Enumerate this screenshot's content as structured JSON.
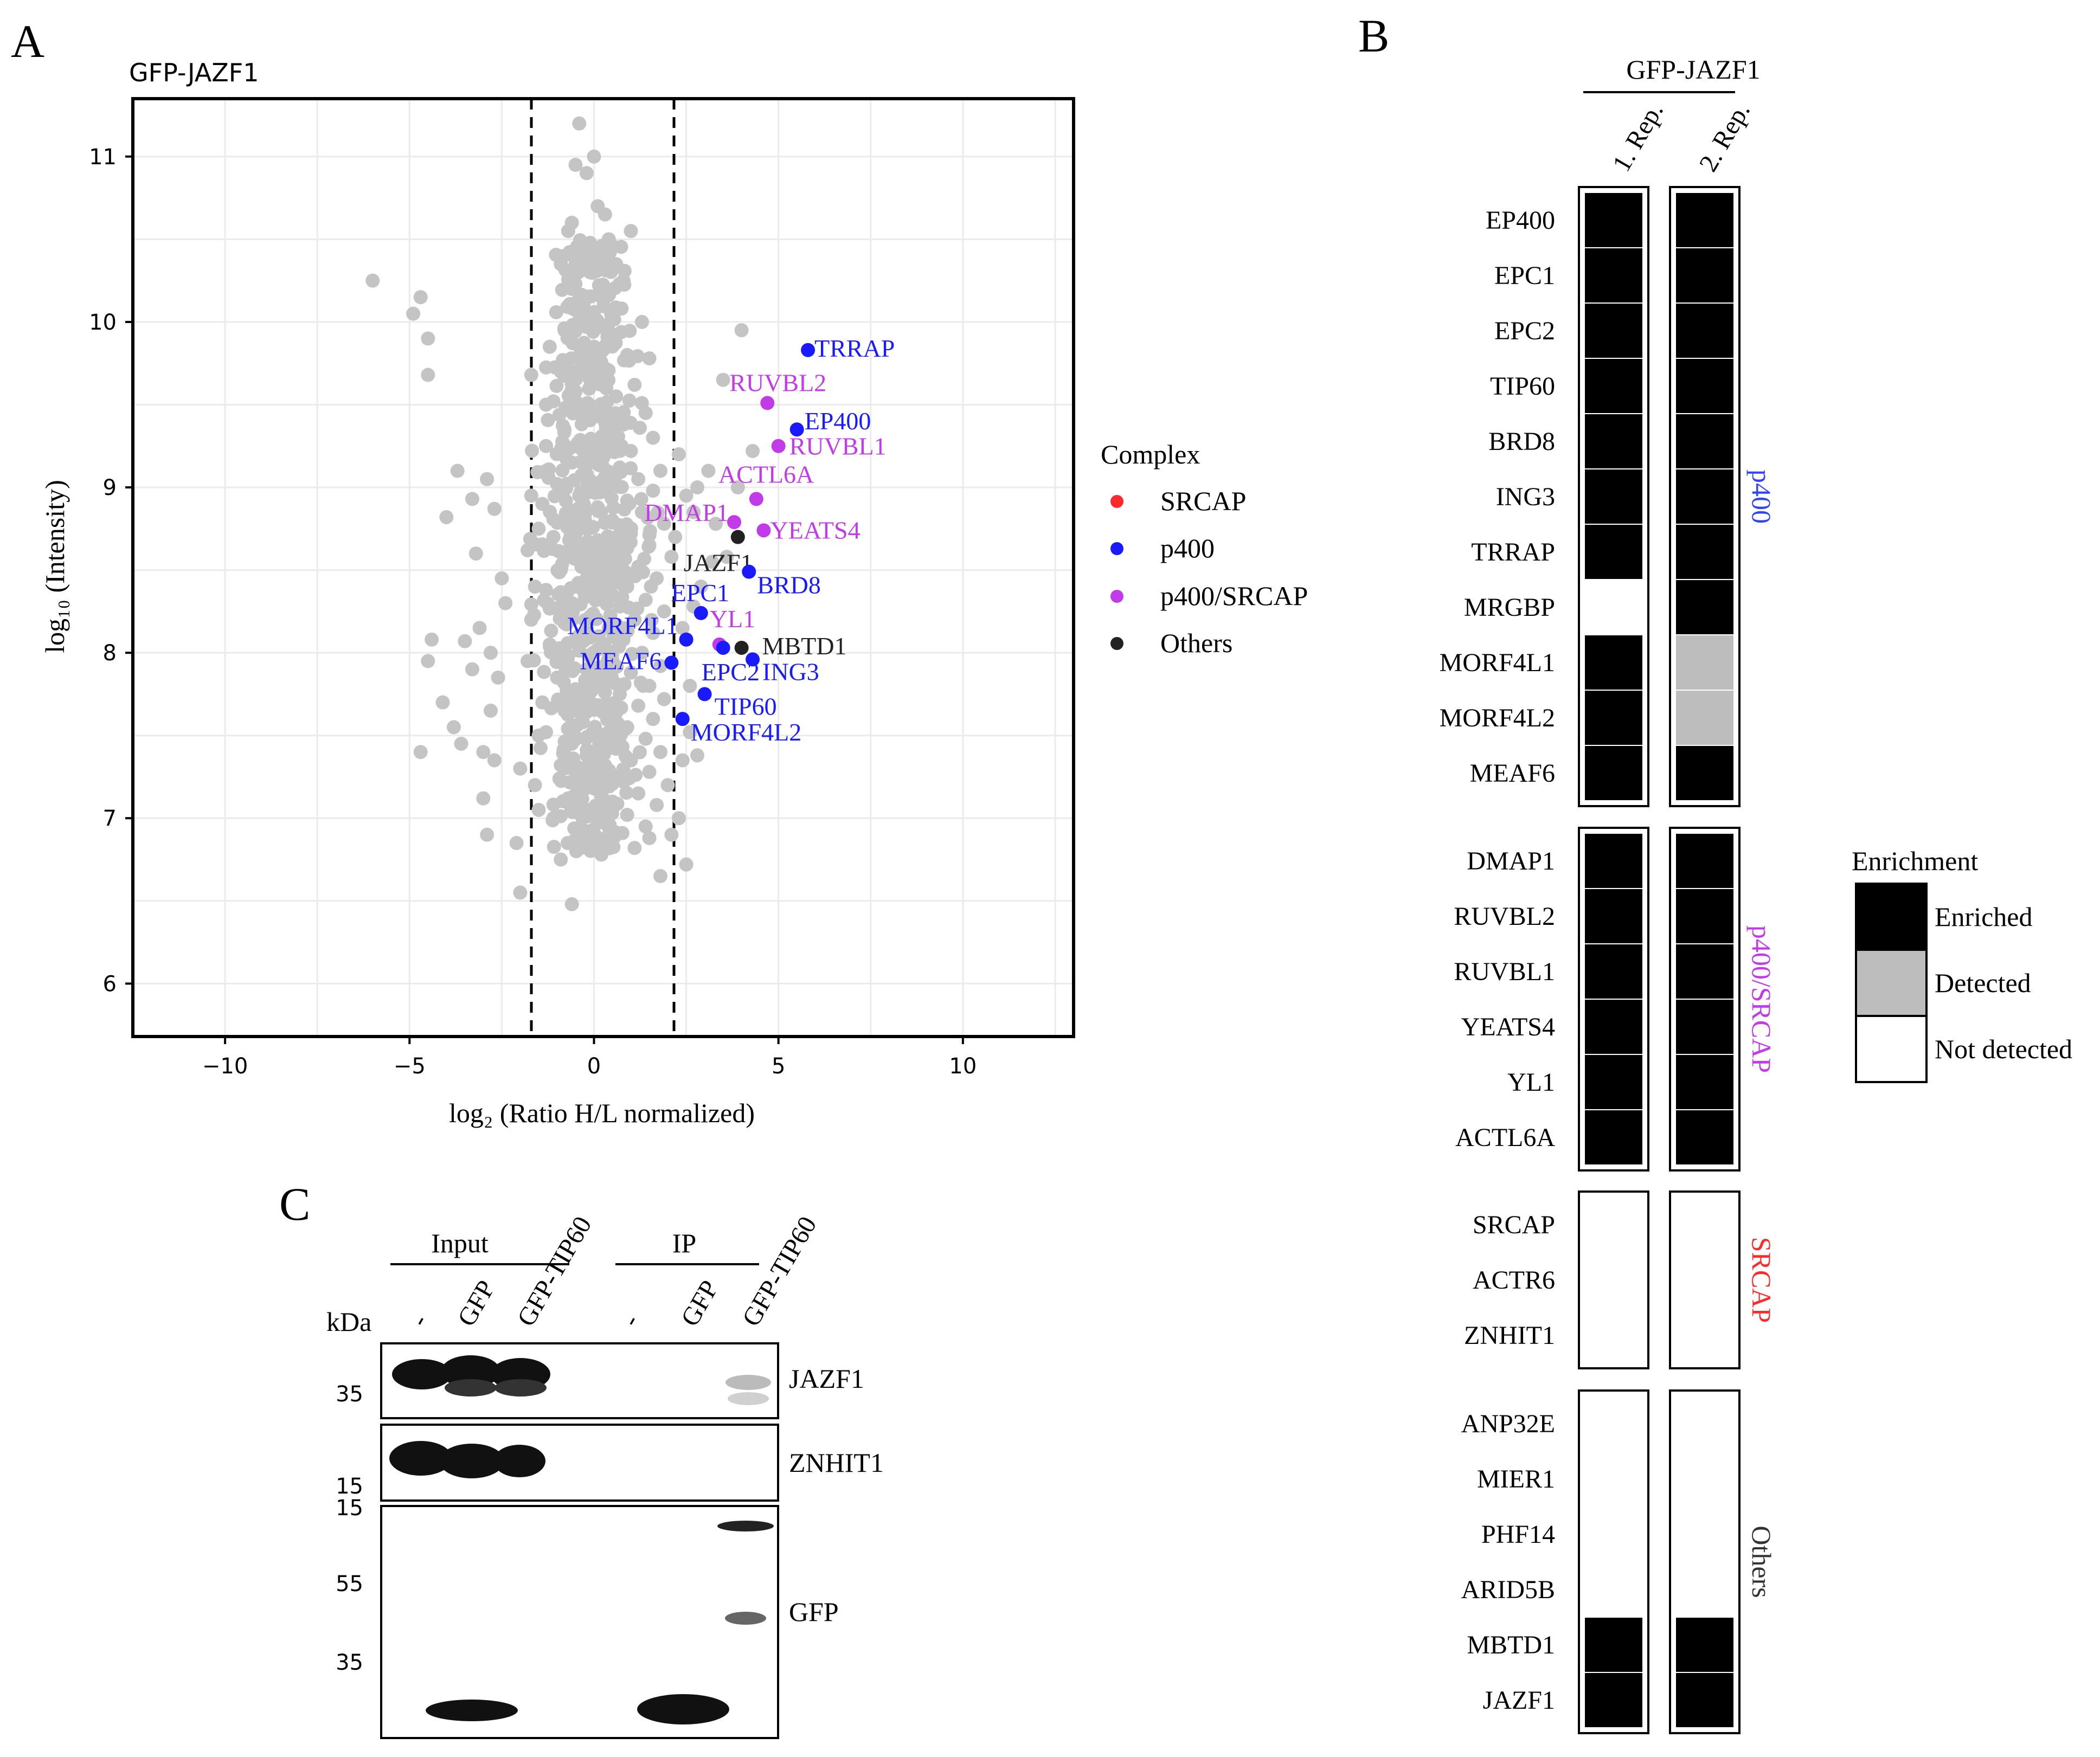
{
  "panel_letters": {
    "a": "A",
    "b": "B",
    "c": "C"
  },
  "panel_a": {
    "chart_data": {
      "type": "scatter",
      "title": "GFP-JAZF1",
      "xlabel": "log₂ (Ratio H/L normalized)",
      "ylabel": "log₁₀ (Intensity)",
      "xlim": [
        -12.5,
        13.0
      ],
      "ylim": [
        5.68,
        11.35
      ],
      "x_ticks": [
        -10,
        -5,
        0,
        5,
        10
      ],
      "x_tick_labels": [
        "−10",
        "−5",
        "0",
        "5",
        "10"
      ],
      "y_ticks": [
        6,
        7,
        8,
        9,
        10,
        11
      ],
      "y_tick_labels": [
        "6",
        "7",
        "8",
        "9",
        "10",
        "11"
      ],
      "grid": true,
      "threshold_lines_x": [
        -2,
        2
      ],
      "legend": {
        "title": "Complex",
        "position": "right",
        "entries": [
          {
            "label": "SRCAP",
            "color": "#ff2a2a"
          },
          {
            "label": "p400",
            "color": "#1a1aff"
          },
          {
            "label": "p400/SRCAP",
            "color": "#c23be8"
          },
          {
            "label": "Others",
            "color": "#222222"
          }
        ]
      },
      "colors": {
        "background_points": "#c4c4c4",
        "p400": "#1a1aff",
        "p400_srcap": "#c23be8",
        "others": "#222222"
      },
      "highlighted": [
        {
          "label": "TRRAP",
          "x": 5.8,
          "y": 9.83,
          "complex": "p400"
        },
        {
          "label": "EP400",
          "x": 5.5,
          "y": 9.35,
          "complex": "p400"
        },
        {
          "label": "RUVBL2",
          "x": 4.7,
          "y": 9.51,
          "complex": "p400/SRCAP"
        },
        {
          "label": "RUVBL1",
          "x": 5.0,
          "y": 9.25,
          "complex": "p400/SRCAP"
        },
        {
          "label": "ACTL6A",
          "x": 4.4,
          "y": 8.93,
          "complex": "p400/SRCAP"
        },
        {
          "label": "DMAP1",
          "x": 3.8,
          "y": 8.79,
          "complex": "p400/SRCAP"
        },
        {
          "label": "YEATS4",
          "x": 4.6,
          "y": 8.74,
          "complex": "p400/SRCAP"
        },
        {
          "label": "JAZF1",
          "x": 3.9,
          "y": 8.7,
          "complex": "Others"
        },
        {
          "label": "BRD8",
          "x": 4.2,
          "y": 8.49,
          "complex": "p400"
        },
        {
          "label": "EPC1",
          "x": 2.9,
          "y": 8.24,
          "complex": "p400"
        },
        {
          "label": "YL1",
          "x": 3.4,
          "y": 8.05,
          "complex": "p400/SRCAP"
        },
        {
          "label": "MORF4L1",
          "x": 2.5,
          "y": 8.08,
          "complex": "p400"
        },
        {
          "label": "MBTD1",
          "x": 4.0,
          "y": 8.03,
          "complex": "Others"
        },
        {
          "label": "MEAF6",
          "x": 2.1,
          "y": 7.94,
          "complex": "p400"
        },
        {
          "label": "ING3",
          "x": 4.3,
          "y": 7.96,
          "complex": "p400"
        },
        {
          "label": "EPC2",
          "x": 3.5,
          "y": 8.03,
          "complex": "p400"
        },
        {
          "label": "TIP60",
          "x": 3.0,
          "y": 7.75,
          "complex": "p400"
        },
        {
          "label": "MORF4L2",
          "x": 2.4,
          "y": 7.6,
          "complex": "p400"
        }
      ],
      "background_points": [
        [
          -6.0,
          10.25
        ],
        [
          -4.7,
          10.15
        ],
        [
          -4.9,
          10.05
        ],
        [
          -4.5,
          9.9
        ],
        [
          -4.5,
          9.68
        ],
        [
          -3.7,
          9.1
        ],
        [
          -3.3,
          8.93
        ],
        [
          -2.9,
          9.05
        ],
        [
          -2.7,
          8.87
        ],
        [
          -4.0,
          8.82
        ],
        [
          -3.2,
          8.6
        ],
        [
          -2.5,
          8.45
        ],
        [
          -2.4,
          8.3
        ],
        [
          -3.1,
          8.15
        ],
        [
          -2.8,
          8.0
        ],
        [
          -4.4,
          8.08
        ],
        [
          -4.5,
          7.95
        ],
        [
          -3.5,
          8.07
        ],
        [
          -3.3,
          7.9
        ],
        [
          -2.6,
          7.85
        ],
        [
          -4.1,
          7.7
        ],
        [
          -2.8,
          7.65
        ],
        [
          -3.8,
          7.55
        ],
        [
          -3.6,
          7.45
        ],
        [
          -3.0,
          7.4
        ],
        [
          -4.7,
          7.4
        ],
        [
          -2.7,
          7.35
        ],
        [
          -3.0,
          7.12
        ],
        [
          -2.9,
          6.9
        ],
        [
          -2.1,
          6.85
        ],
        [
          -2.0,
          6.55
        ],
        [
          -0.6,
          6.48
        ],
        [
          -1.5,
          7.05
        ],
        [
          -2.0,
          7.3
        ],
        [
          -1.5,
          7.5
        ],
        [
          -1.7,
          9.68
        ],
        [
          -1.3,
          9.5
        ],
        [
          -1.7,
          8.95
        ],
        [
          -1.8,
          8.62
        ],
        [
          -1.6,
          8.4
        ],
        [
          -0.4,
          11.2
        ],
        [
          -0.5,
          10.95
        ],
        [
          -0.2,
          10.9
        ],
        [
          0.0,
          11.0
        ],
        [
          0.1,
          10.7
        ],
        [
          0.3,
          10.65
        ],
        [
          1.0,
          10.55
        ],
        [
          -0.7,
          10.55
        ],
        [
          0.4,
          10.5
        ],
        [
          -0.4,
          10.35
        ],
        [
          0.8,
          10.25
        ],
        [
          -0.6,
          10.2
        ],
        [
          0.2,
          10.15
        ],
        [
          0.5,
          10.05
        ],
        [
          -0.2,
          10.0
        ],
        [
          1.3,
          10.0
        ],
        [
          -0.8,
          9.95
        ],
        [
          0.6,
          9.92
        ],
        [
          0.0,
          9.85
        ],
        [
          -1.2,
          9.85
        ],
        [
          0.9,
          9.8
        ],
        [
          -0.4,
          9.78
        ],
        [
          1.5,
          9.78
        ],
        [
          0.3,
          9.72
        ],
        [
          -0.9,
          9.7
        ],
        [
          0.0,
          9.65
        ],
        [
          1.1,
          9.62
        ],
        [
          -0.5,
          9.58
        ],
        [
          0.6,
          9.55
        ],
        [
          -1.1,
          9.52
        ],
        [
          0.2,
          9.48
        ],
        [
          1.4,
          9.45
        ],
        [
          -0.3,
          9.42
        ],
        [
          0.8,
          9.38
        ],
        [
          -0.8,
          9.35
        ],
        [
          0.4,
          9.32
        ],
        [
          1.6,
          9.3
        ],
        [
          -0.1,
          9.28
        ],
        [
          -1.3,
          9.25
        ],
        [
          1.0,
          9.22
        ],
        [
          0.2,
          9.18
        ],
        [
          -0.6,
          9.15
        ],
        [
          0.7,
          9.12
        ],
        [
          2.3,
          9.2
        ],
        [
          1.8,
          9.1
        ],
        [
          -0.2,
          9.08
        ],
        [
          1.2,
          9.05
        ],
        [
          -1.0,
          9.02
        ],
        [
          0.4,
          9.0
        ],
        [
          1.6,
          8.98
        ],
        [
          -0.4,
          8.95
        ],
        [
          0.9,
          8.92
        ],
        [
          -1.4,
          8.9
        ],
        [
          0.1,
          8.88
        ],
        [
          2.8,
          9.0
        ],
        [
          1.3,
          8.85
        ],
        [
          -0.7,
          8.82
        ],
        [
          0.5,
          8.8
        ],
        [
          1.9,
          8.78
        ],
        [
          -0.2,
          8.75
        ],
        [
          1.0,
          8.72
        ],
        [
          -1.1,
          8.7
        ],
        [
          0.3,
          8.68
        ],
        [
          1.5,
          8.65
        ],
        [
          -0.5,
          8.62
        ],
        [
          0.8,
          8.6
        ],
        [
          2.1,
          8.58
        ],
        [
          -0.1,
          8.55
        ],
        [
          1.2,
          8.52
        ],
        [
          -0.9,
          8.5
        ],
        [
          0.5,
          8.48
        ],
        [
          1.7,
          8.45
        ],
        [
          -0.3,
          8.42
        ],
        [
          0.9,
          8.4
        ],
        [
          -1.3,
          8.38
        ],
        [
          0.2,
          8.35
        ],
        [
          1.4,
          8.32
        ],
        [
          -0.6,
          8.3
        ],
        [
          0.7,
          8.28
        ],
        [
          1.9,
          8.25
        ],
        [
          -0.1,
          8.22
        ],
        [
          1.1,
          8.2
        ],
        [
          -0.8,
          8.18
        ],
        [
          0.4,
          8.15
        ],
        [
          1.6,
          8.12
        ],
        [
          -0.4,
          8.1
        ],
        [
          0.8,
          8.08
        ],
        [
          -1.2,
          8.05
        ],
        [
          0.1,
          8.02
        ],
        [
          1.3,
          8.0
        ],
        [
          -0.7,
          7.98
        ],
        [
          0.5,
          7.95
        ],
        [
          1.8,
          7.92
        ],
        [
          -0.2,
          7.9
        ],
        [
          1.0,
          7.88
        ],
        [
          -1.0,
          7.85
        ],
        [
          0.3,
          7.82
        ],
        [
          1.5,
          7.8
        ],
        [
          -0.5,
          7.78
        ],
        [
          0.7,
          7.75
        ],
        [
          1.9,
          7.72
        ],
        [
          -0.1,
          7.7
        ],
        [
          1.2,
          7.68
        ],
        [
          -0.8,
          7.65
        ],
        [
          0.4,
          7.62
        ],
        [
          1.6,
          7.6
        ],
        [
          -0.3,
          7.58
        ],
        [
          0.9,
          7.55
        ],
        [
          -1.3,
          7.52
        ],
        [
          0.2,
          7.5
        ],
        [
          1.4,
          7.48
        ],
        [
          -0.6,
          7.45
        ],
        [
          0.6,
          7.42
        ],
        [
          1.8,
          7.4
        ],
        [
          -0.2,
          7.38
        ],
        [
          1.0,
          7.35
        ],
        [
          -0.9,
          7.32
        ],
        [
          0.3,
          7.3
        ],
        [
          1.5,
          7.28
        ],
        [
          -0.4,
          7.25
        ],
        [
          0.8,
          7.22
        ],
        [
          2.0,
          7.2
        ],
        [
          0.0,
          7.18
        ],
        [
          1.2,
          7.15
        ],
        [
          -0.7,
          7.12
        ],
        [
          0.5,
          7.1
        ],
        [
          1.7,
          7.08
        ],
        [
          -0.2,
          7.05
        ],
        [
          0.9,
          7.02
        ],
        [
          -1.1,
          7.0
        ],
        [
          0.3,
          6.98
        ],
        [
          1.4,
          6.95
        ],
        [
          0.6,
          6.9
        ],
        [
          -0.3,
          6.85
        ],
        [
          1.1,
          6.82
        ],
        [
          2.5,
          6.72
        ],
        [
          1.5,
          6.88
        ],
        [
          0.2,
          6.78
        ],
        [
          -0.9,
          6.75
        ],
        [
          1.8,
          6.65
        ],
        [
          2.4,
          7.35
        ],
        [
          2.6,
          7.8
        ],
        [
          2.9,
          8.4
        ],
        [
          3.3,
          8.78
        ],
        [
          3.6,
          8.58
        ],
        [
          2.7,
          8.85
        ],
        [
          3.1,
          9.1
        ],
        [
          3.9,
          9.0
        ],
        [
          4.0,
          9.95
        ],
        [
          3.5,
          9.65
        ],
        [
          4.3,
          9.22
        ],
        [
          2.5,
          8.95
        ],
        [
          2.2,
          8.7
        ],
        [
          2.4,
          8.15
        ],
        [
          2.6,
          7.52
        ],
        [
          2.8,
          7.38
        ],
        [
          2.3,
          7.0
        ],
        [
          2.1,
          6.9
        ],
        [
          2.7,
          8.28
        ],
        [
          3.2,
          8.55
        ],
        [
          -0.9,
          10.35
        ],
        [
          -0.6,
          10.6
        ],
        [
          -0.1,
          10.3
        ],
        [
          0.6,
          10.35
        ],
        [
          -1.3,
          9.1
        ],
        [
          -1.5,
          8.75
        ],
        [
          -1.7,
          8.2
        ],
        [
          -1.8,
          7.95
        ],
        [
          -1.4,
          7.7
        ],
        [
          -1.6,
          7.2
        ]
      ]
    }
  },
  "panel_b": {
    "title": "GFP-JAZF1",
    "columns": [
      "1. Rep.",
      "2. Rep."
    ],
    "groups": [
      {
        "name": "p400",
        "color": "#3344ff",
        "rows": [
          {
            "label": "EP400",
            "values": [
              "Enriched",
              "Enriched"
            ]
          },
          {
            "label": "EPC1",
            "values": [
              "Enriched",
              "Enriched"
            ]
          },
          {
            "label": "EPC2",
            "values": [
              "Enriched",
              "Enriched"
            ]
          },
          {
            "label": "TIP60",
            "values": [
              "Enriched",
              "Enriched"
            ]
          },
          {
            "label": "BRD8",
            "values": [
              "Enriched",
              "Enriched"
            ]
          },
          {
            "label": "ING3",
            "values": [
              "Enriched",
              "Enriched"
            ]
          },
          {
            "label": "TRRAP",
            "values": [
              "Enriched",
              "Enriched"
            ]
          },
          {
            "label": "MRGBP",
            "values": [
              "Not detected",
              "Enriched"
            ]
          },
          {
            "label": "MORF4L1",
            "values": [
              "Enriched",
              "Detected"
            ]
          },
          {
            "label": "MORF4L2",
            "values": [
              "Enriched",
              "Detected"
            ]
          },
          {
            "label": "MEAF6",
            "values": [
              "Enriched",
              "Enriched"
            ]
          }
        ]
      },
      {
        "name": "p400/SRCAP",
        "color": "#c23be8",
        "rows": [
          {
            "label": "DMAP1",
            "values": [
              "Enriched",
              "Enriched"
            ]
          },
          {
            "label": "RUVBL2",
            "values": [
              "Enriched",
              "Enriched"
            ]
          },
          {
            "label": "RUVBL1",
            "values": [
              "Enriched",
              "Enriched"
            ]
          },
          {
            "label": "YEATS4",
            "values": [
              "Enriched",
              "Enriched"
            ]
          },
          {
            "label": "YL1",
            "values": [
              "Enriched",
              "Enriched"
            ]
          },
          {
            "label": "ACTL6A",
            "values": [
              "Enriched",
              "Enriched"
            ]
          }
        ]
      },
      {
        "name": "SRCAP",
        "color": "#ff2a2a",
        "rows": [
          {
            "label": "SRCAP",
            "values": [
              "Not detected",
              "Not detected"
            ]
          },
          {
            "label": "ACTR6",
            "values": [
              "Not detected",
              "Not detected"
            ]
          },
          {
            "label": "ZNHIT1",
            "values": [
              "Not detected",
              "Not detected"
            ]
          }
        ]
      },
      {
        "name": "Others",
        "color": "#333333",
        "rows": [
          {
            "label": "ANP32E",
            "values": [
              "Not detected",
              "Not detected"
            ]
          },
          {
            "label": "MIER1",
            "values": [
              "Not detected",
              "Not detected"
            ]
          },
          {
            "label": "PHF14",
            "values": [
              "Not detected",
              "Not detected"
            ]
          },
          {
            "label": "ARID5B",
            "values": [
              "Not detected",
              "Not detected"
            ]
          },
          {
            "label": "MBTD1",
            "values": [
              "Enriched",
              "Enriched"
            ]
          },
          {
            "label": "JAZF1",
            "values": [
              "Enriched",
              "Enriched"
            ]
          }
        ]
      }
    ],
    "legend": {
      "title": "Enrichment",
      "entries": [
        {
          "label": "Enriched",
          "color": "#000000"
        },
        {
          "label": "Detected",
          "color": "#bdbdbd"
        },
        {
          "label": "Not detected",
          "color": "#ffffff"
        }
      ]
    }
  },
  "panel_c": {
    "kda_label": "kDa",
    "groups": [
      {
        "label": "Input"
      },
      {
        "label": "IP"
      }
    ],
    "lanes": [
      "-",
      "GFP",
      "GFP-TIP60",
      "-",
      "GFP",
      "GFP-TIP60"
    ],
    "blots": [
      {
        "label": "JAZF1",
        "markers": [
          "35"
        ]
      },
      {
        "label": "ZNHIT1",
        "markers": [
          "15"
        ]
      },
      {
        "label": "GFP",
        "markers": [
          "15",
          "55",
          "35"
        ]
      }
    ]
  }
}
